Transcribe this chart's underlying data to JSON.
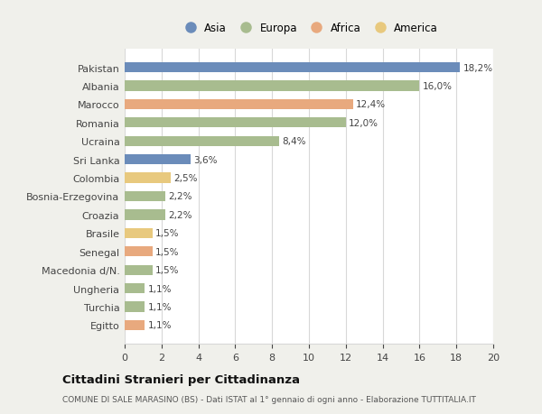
{
  "categories": [
    "Pakistan",
    "Albania",
    "Marocco",
    "Romania",
    "Ucraina",
    "Sri Lanka",
    "Colombia",
    "Bosnia-Erzegovina",
    "Croazia",
    "Brasile",
    "Senegal",
    "Macedonia d/N.",
    "Ungheria",
    "Turchia",
    "Egitto"
  ],
  "values": [
    18.2,
    16.0,
    12.4,
    12.0,
    8.4,
    3.6,
    2.5,
    2.2,
    2.2,
    1.5,
    1.5,
    1.5,
    1.1,
    1.1,
    1.1
  ],
  "labels": [
    "18,2%",
    "16,0%",
    "12,4%",
    "12,0%",
    "8,4%",
    "3,6%",
    "2,5%",
    "2,2%",
    "2,2%",
    "1,5%",
    "1,5%",
    "1,5%",
    "1,1%",
    "1,1%",
    "1,1%"
  ],
  "colors": [
    "#6b8cba",
    "#a8bc8f",
    "#e8a97e",
    "#a8bc8f",
    "#a8bc8f",
    "#6b8cba",
    "#e8c97e",
    "#a8bc8f",
    "#a8bc8f",
    "#e8c97e",
    "#e8a97e",
    "#a8bc8f",
    "#a8bc8f",
    "#a8bc8f",
    "#e8a97e"
  ],
  "legend_labels": [
    "Asia",
    "Europa",
    "Africa",
    "America"
  ],
  "legend_colors": [
    "#6b8cba",
    "#a8bc8f",
    "#e8a97e",
    "#e8c97e"
  ],
  "title": "Cittadini Stranieri per Cittadinanza",
  "subtitle": "COMUNE DI SALE MARASINO (BS) - Dati ISTAT al 1° gennaio di ogni anno - Elaborazione TUTTITALIA.IT",
  "xlim": [
    0,
    20
  ],
  "xticks": [
    0,
    2,
    4,
    6,
    8,
    10,
    12,
    14,
    16,
    18,
    20
  ],
  "figure_bg": "#f0f0eb",
  "axes_bg": "#ffffff",
  "grid_color": "#d8d8d8",
  "text_color": "#444444",
  "label_fontsize": 7.5,
  "tick_fontsize": 8.0,
  "bar_height": 0.55
}
